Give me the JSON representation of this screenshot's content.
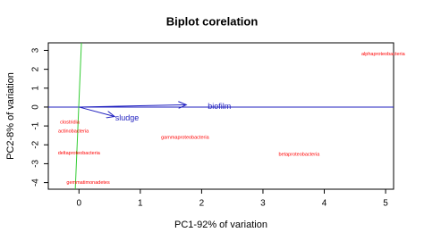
{
  "chart_data": {
    "type": "biplot",
    "title": "Biplot corelation",
    "x_label": "PC1-92% of variation",
    "y_label": "PC2-8% of variation",
    "xlim": [
      -0.5,
      5.13
    ],
    "ylim": [
      -4.35,
      3.4
    ],
    "xticks": [
      0,
      1,
      2,
      3,
      4,
      5
    ],
    "yticks": [
      -4,
      -3,
      -2,
      -1,
      0,
      1,
      2,
      3
    ],
    "points": {
      "color": "#ff0000",
      "labels": [
        "alphaproteobacteria",
        "gammaproteobacteria",
        "betaproteobacteria",
        "deltaproteobacteria",
        "gemmatimonadetes",
        "actinobacteria",
        "clostridia"
      ],
      "x": [
        4.96,
        1.73,
        3.59,
        0,
        0.15,
        -0.09,
        -0.15
      ],
      "y": [
        2.8,
        -1.6,
        -2.5,
        -2.45,
        -4.0,
        -1.27,
        -0.8
      ]
    },
    "arrows": {
      "color": "#1f1fbf",
      "names": [
        "biofilm",
        "sludge"
      ],
      "x": [
        1.75,
        0.58
      ],
      "y": [
        0.12,
        -0.5
      ]
    },
    "lines": [
      {
        "color": "#1f1fbf",
        "x": [
          -0.5,
          5.13
        ],
        "y": [
          0,
          0
        ]
      },
      {
        "color": "#33cc33",
        "x": [
          0.04,
          -0.06
        ],
        "y": [
          3.4,
          -4.35
        ]
      }
    ]
  }
}
